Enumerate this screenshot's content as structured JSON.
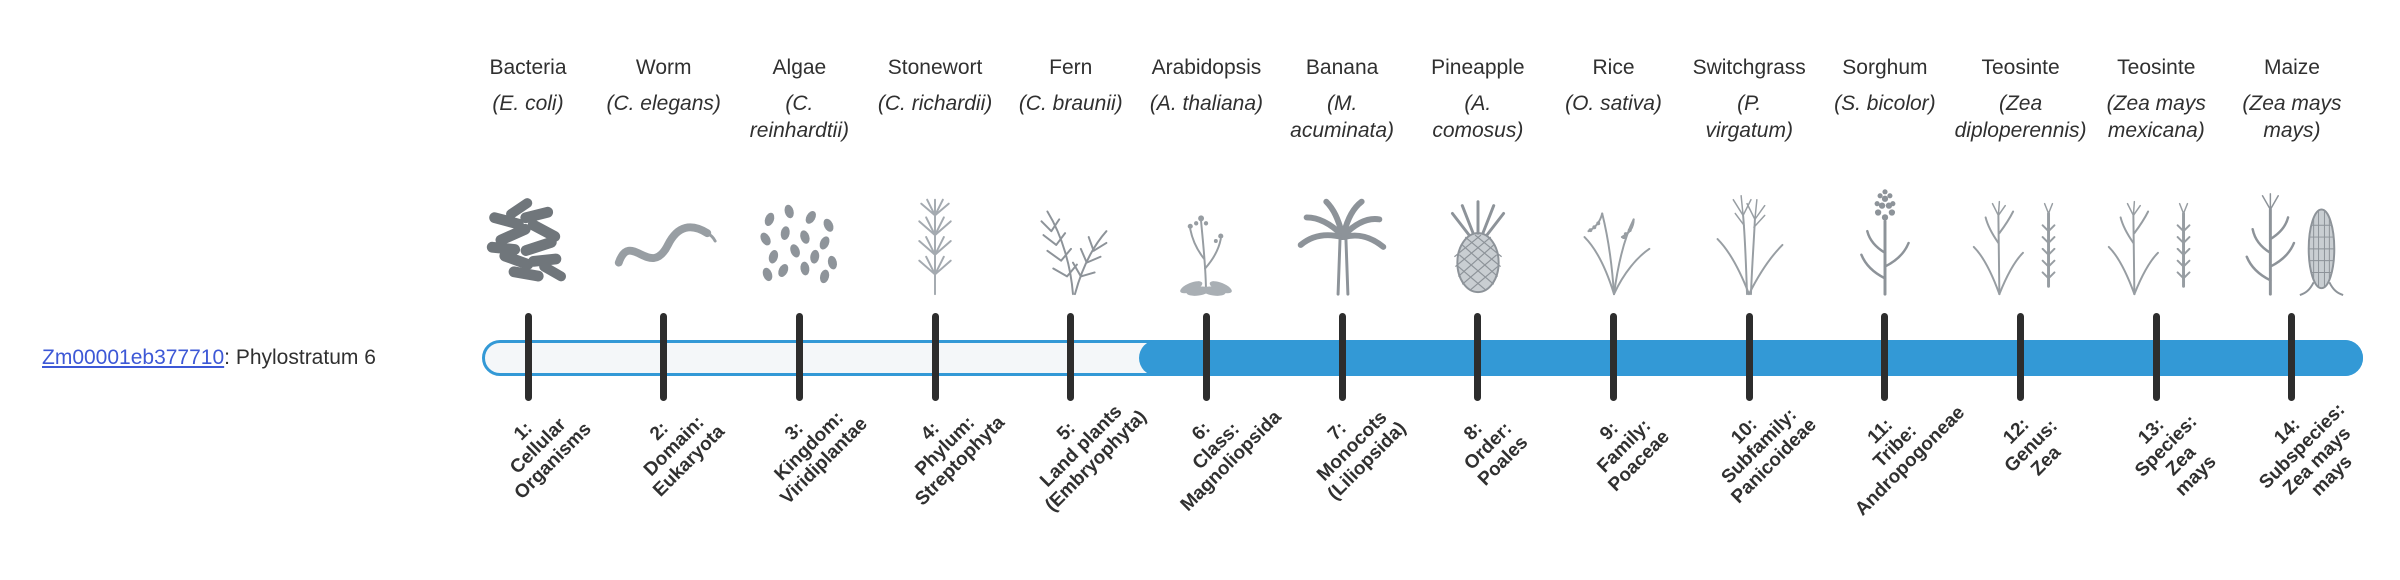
{
  "colors": {
    "accent": "#3399d6",
    "track": "#f4f7f9",
    "tick": "#2d2d2d",
    "link": "#3d58d6",
    "text": "#303030"
  },
  "gene": {
    "id": "Zm00001eb377710",
    "label_suffix": ": Phylostratum 6",
    "phylostratum": 6
  },
  "bar": {
    "total_strata": 14,
    "filled_from_stratum": 6
  },
  "strata": [
    {
      "stratum": 1,
      "common": "Bacteria",
      "sci": "(E. coli)",
      "icon": "bacteria-icon",
      "tick_label": "1:\nCellular\nOrganisms"
    },
    {
      "stratum": 2,
      "common": "Worm",
      "sci": "(C. elegans)",
      "icon": "worm-icon",
      "tick_label": "2:\nDomain:\nEukaryota"
    },
    {
      "stratum": 3,
      "common": "Algae",
      "sci": "(C.\nreinhardtii)",
      "icon": "algae-icon",
      "tick_label": "3:\nKingdom:\nViridiplantae"
    },
    {
      "stratum": 4,
      "common": "Stonewort",
      "sci": "(C. richardii)",
      "icon": "stonewort-icon",
      "tick_label": "4:\nPhylum:\nStreptophyta"
    },
    {
      "stratum": 5,
      "common": "Fern",
      "sci": "(C. braunii)",
      "icon": "fern-icon",
      "tick_label": "5:\nLand plants\n(Embryophyta)"
    },
    {
      "stratum": 6,
      "common": "Arabidopsis",
      "sci": "(A. thaliana)",
      "icon": "arabidopsis-icon",
      "tick_label": "6:\nClass:\nMagnoliopsida"
    },
    {
      "stratum": 7,
      "common": "Banana",
      "sci": "(M.\nacuminata)",
      "icon": "banana-icon",
      "tick_label": "7:\nMonocots\n(Liliopsida)"
    },
    {
      "stratum": 8,
      "common": "Pineapple",
      "sci": "(A.\ncomosus)",
      "icon": "pineapple-icon",
      "tick_label": "8:\nOrder:\nPoales"
    },
    {
      "stratum": 9,
      "common": "Rice",
      "sci": "(O. sativa)",
      "icon": "rice-icon",
      "tick_label": "9:\nFamily:\nPoaceae"
    },
    {
      "stratum": 10,
      "common": "Switchgrass",
      "sci": "(P.\nvirgatum)",
      "icon": "switchgrass-icon",
      "tick_label": "10:\nSubfamily:\nPanicoideae"
    },
    {
      "stratum": 11,
      "common": "Sorghum",
      "sci": "(S. bicolor)",
      "icon": "sorghum-icon",
      "tick_label": "11:\nTribe:\nAndropogoneae"
    },
    {
      "stratum": 12,
      "common": "Teosinte",
      "sci": "(Zea\ndiploperennis)",
      "icon": "teosinte-icon",
      "tick_label": "12:\nGenus:\nZea"
    },
    {
      "stratum": 13,
      "common": "Teosinte",
      "sci": "(Zea mays\nmexicana)",
      "icon": "teosinte-icon",
      "tick_label": "13:\nSpecies:\nZea\nmays"
    },
    {
      "stratum": 14,
      "common": "Maize",
      "sci": "(Zea mays\nmays)",
      "icon": "maize-icon",
      "tick_label": "14:\nSubspecies:\nZea mays\nmays"
    }
  ]
}
